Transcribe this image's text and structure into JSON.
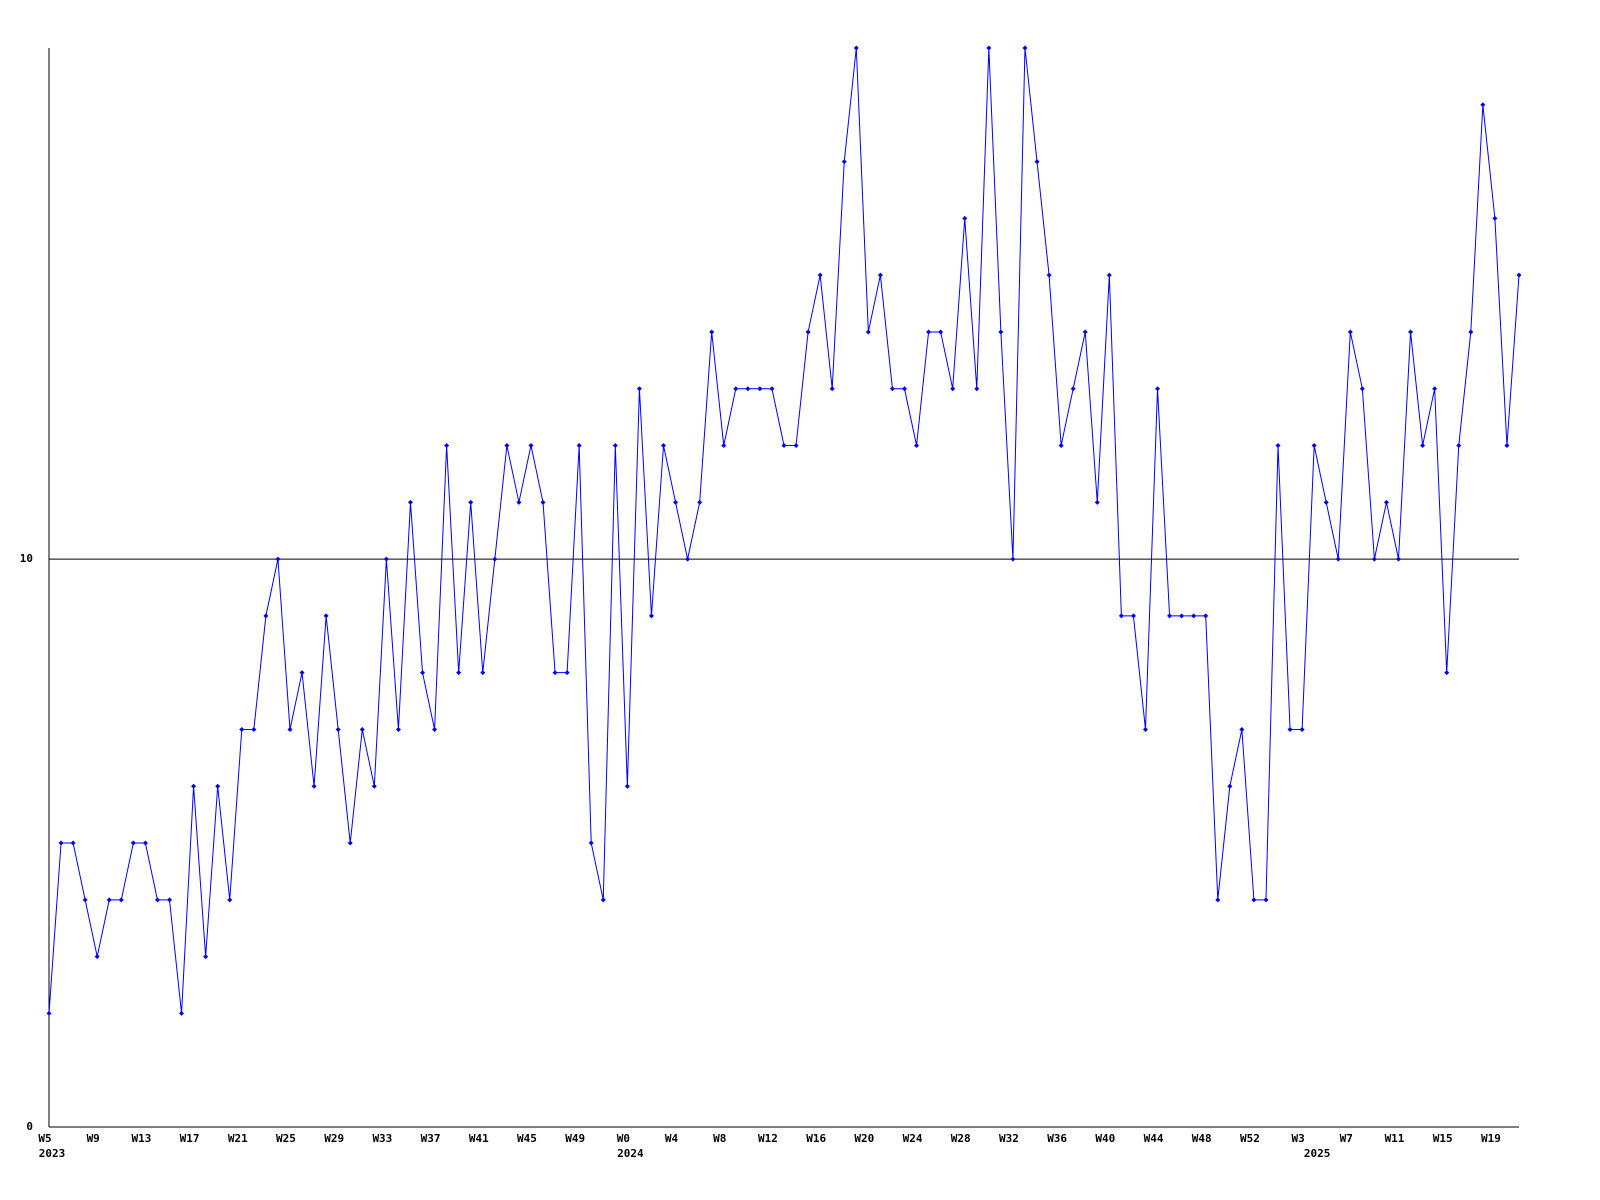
{
  "chart_data": {
    "type": "line",
    "categories": [
      "W5",
      null,
      null,
      null,
      "W9",
      null,
      null,
      null,
      "W13",
      null,
      null,
      null,
      "W17",
      null,
      null,
      null,
      "W21",
      null,
      null,
      null,
      "W25",
      null,
      null,
      null,
      "W29",
      null,
      null,
      null,
      "W33",
      null,
      null,
      null,
      "W37",
      null,
      null,
      null,
      "W41",
      null,
      null,
      null,
      "W45",
      null,
      null,
      null,
      "W49",
      null,
      null,
      null,
      "W0",
      null,
      null,
      null,
      "W4",
      null,
      null,
      null,
      "W8",
      null,
      null,
      null,
      "W12",
      null,
      null,
      null,
      "W16",
      null,
      null,
      null,
      "W20",
      null,
      null,
      null,
      "W24",
      null,
      null,
      null,
      "W28",
      null,
      null,
      null,
      "W32",
      null,
      null,
      null,
      "W36",
      null,
      null,
      null,
      "W40",
      null,
      null,
      null,
      "W44",
      null,
      null,
      null,
      "W48",
      null,
      null,
      null,
      "W52",
      null,
      null,
      null,
      "W3",
      null,
      null,
      null,
      "W7",
      null,
      null,
      null,
      "W11",
      null,
      null,
      null,
      "W15",
      null,
      null,
      null,
      "W19",
      null,
      null
    ],
    "years": [
      "2023",
      null,
      null,
      null,
      null,
      null,
      null,
      null,
      null,
      null,
      null,
      null,
      null,
      null,
      null,
      null,
      null,
      null,
      null,
      null,
      null,
      null,
      null,
      null,
      null,
      null,
      null,
      null,
      null,
      null,
      null,
      null,
      null,
      null,
      null,
      null,
      null,
      null,
      null,
      null,
      null,
      null,
      null,
      null,
      null,
      null,
      null,
      null,
      "2024",
      null,
      null,
      null,
      null,
      null,
      null,
      null,
      null,
      null,
      null,
      null,
      null,
      null,
      null,
      null,
      null,
      null,
      null,
      null,
      null,
      null,
      null,
      null,
      null,
      null,
      null,
      null,
      null,
      null,
      null,
      null,
      null,
      null,
      null,
      null,
      null,
      null,
      null,
      null,
      null,
      null,
      null,
      null,
      null,
      null,
      null,
      null,
      null,
      null,
      null,
      null,
      null,
      null,
      null,
      null,
      null,
      "2025",
      null,
      null,
      null,
      null,
      null,
      null,
      null,
      null,
      null,
      null,
      null,
      null,
      null,
      null,
      null,
      null,
      null,
      null,
      null,
      null
    ],
    "series": [
      {
        "color": "#0000ff",
        "values": [
          2,
          5,
          5,
          4,
          3,
          4,
          4,
          5,
          5,
          4,
          4,
          2,
          6,
          3,
          6,
          4,
          7,
          7,
          9,
          10,
          7,
          8,
          6,
          9,
          7,
          5,
          7,
          6,
          10,
          7,
          11,
          8,
          7,
          12,
          8,
          11,
          8,
          10,
          12,
          11,
          12,
          11,
          8,
          8,
          12,
          5,
          4,
          12,
          6,
          13,
          9,
          12,
          11,
          10,
          11,
          14,
          12,
          13,
          13,
          13,
          13,
          12,
          12,
          14,
          15,
          13,
          17,
          19,
          14,
          15,
          13,
          13,
          12,
          14,
          14,
          13,
          16,
          13,
          19,
          14,
          10,
          19,
          17,
          15,
          12,
          13,
          14,
          11,
          15,
          9,
          9,
          7,
          13,
          9,
          9,
          9,
          9,
          4,
          6,
          7,
          4,
          4,
          12,
          7,
          7,
          12,
          11,
          10,
          14,
          13,
          10,
          11,
          10,
          14,
          12,
          13,
          8,
          12,
          14,
          18,
          16,
          12,
          15
        ]
      }
    ],
    "ylim": [
      0,
      19
    ],
    "yticks": [
      0,
      10
    ],
    "grid": true
  }
}
